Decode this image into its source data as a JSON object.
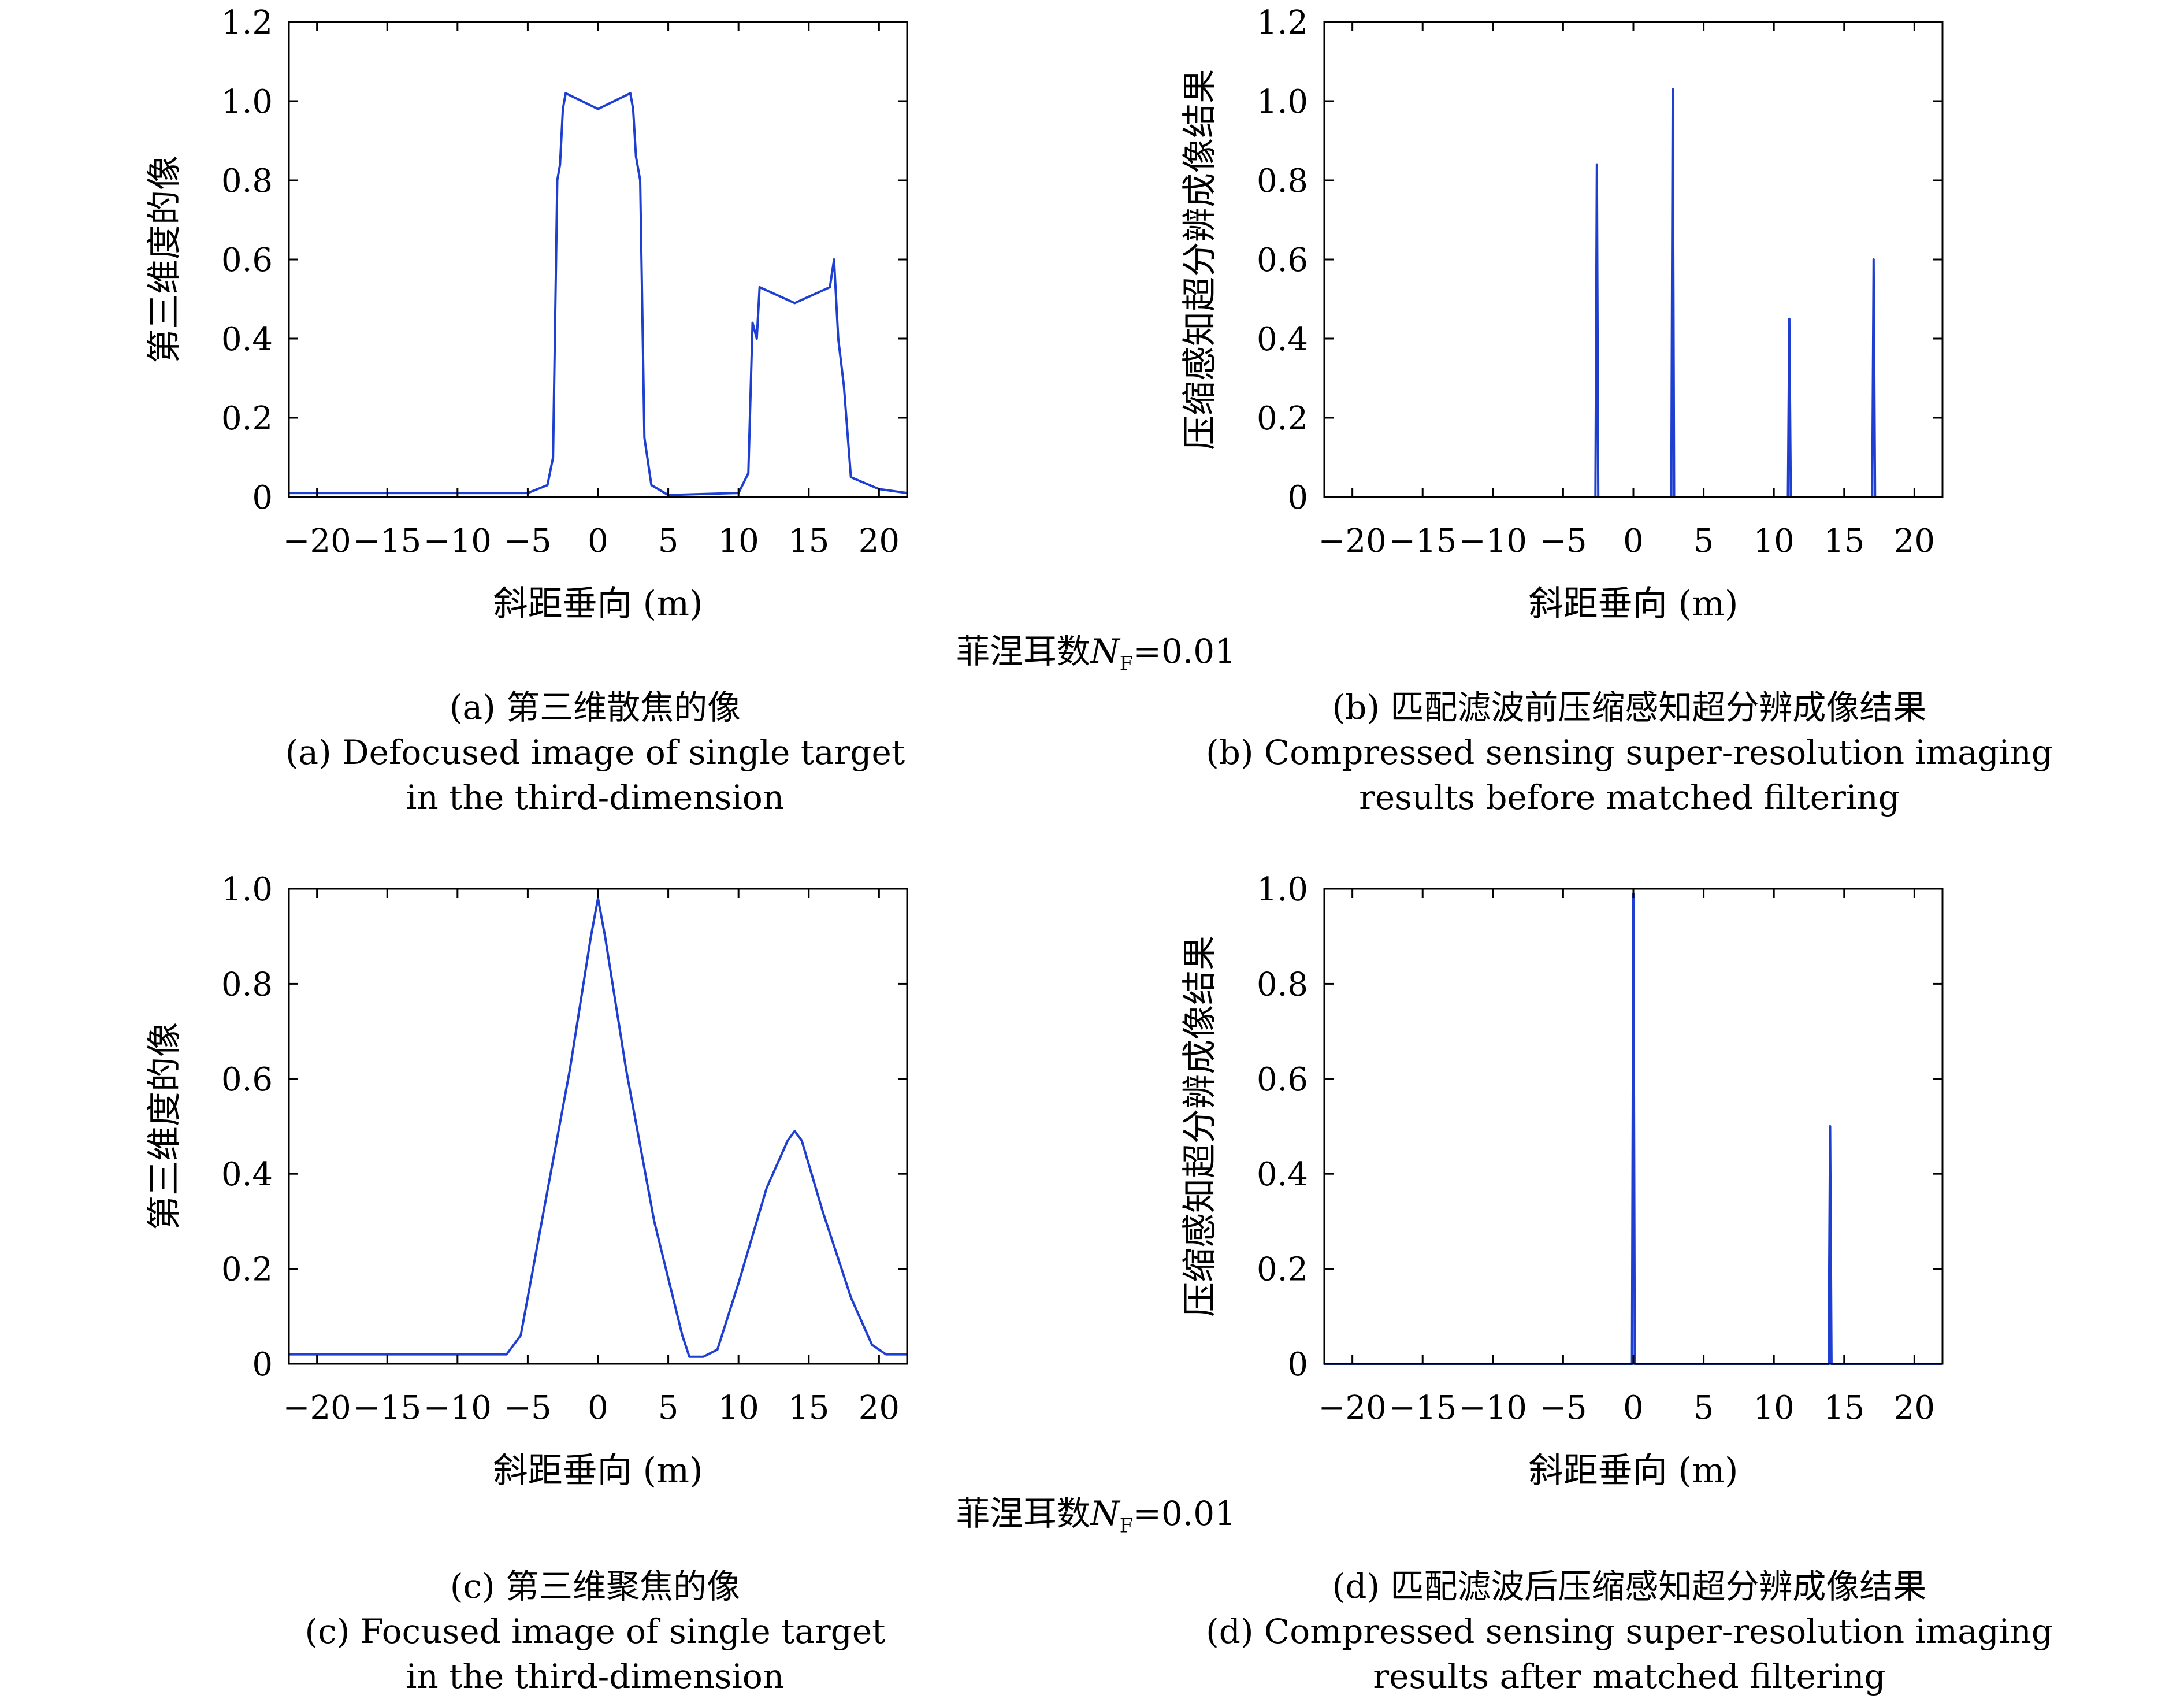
{
  "chart_data": [
    {
      "id": "a",
      "type": "line",
      "xlabel": "斜距垂向 (m)",
      "ylabel": "第三维度的像",
      "xlim": [
        -22,
        22
      ],
      "ylim": [
        0,
        1.2
      ],
      "xticks": [
        -20,
        -15,
        -10,
        -5,
        0,
        5,
        10,
        15,
        20
      ],
      "yticks": [
        0,
        0.2,
        0.4,
        0.6,
        0.8,
        1.0,
        1.2
      ],
      "ytick_labels": [
        "0",
        "0.2",
        "0.4",
        "0.6",
        "0.8",
        "1.0",
        "1.2"
      ],
      "series": [
        {
          "color": "#1f3fd0",
          "x": [
            -22,
            -5,
            -3.6,
            -3.2,
            -2.9,
            -2.7,
            -2.5,
            -2.3,
            0,
            2.3,
            2.5,
            2.7,
            3.0,
            3.3,
            3.8,
            5,
            10,
            10.7,
            11.0,
            11.3,
            11.5,
            14,
            16.5,
            16.8,
            17.1,
            17.5,
            18,
            20,
            22
          ],
          "y": [
            0.01,
            0.01,
            0.03,
            0.1,
            0.8,
            0.84,
            0.98,
            1.02,
            0.98,
            1.02,
            0.98,
            0.86,
            0.8,
            0.15,
            0.03,
            0.005,
            0.01,
            0.06,
            0.44,
            0.4,
            0.53,
            0.49,
            0.53,
            0.6,
            0.4,
            0.28,
            0.05,
            0.02,
            0.01
          ]
        }
      ]
    },
    {
      "id": "b",
      "type": "line",
      "xlabel": "斜距垂向 (m)",
      "ylabel": "压缩感知超分辨成像结果",
      "xlim": [
        -22,
        22
      ],
      "ylim": [
        0,
        1.2
      ],
      "xticks": [
        -20,
        -15,
        -10,
        -5,
        0,
        5,
        10,
        15,
        20
      ],
      "yticks": [
        0,
        0.2,
        0.4,
        0.6,
        0.8,
        1.0,
        1.2
      ],
      "ytick_labels": [
        "0",
        "0.2",
        "0.4",
        "0.6",
        "0.8",
        "1.0",
        "1.2"
      ],
      "series": [
        {
          "color": "#1f3fd0",
          "x": [
            -22,
            -2.7,
            -2.6,
            -2.5,
            2.7,
            2.8,
            2.9,
            11.0,
            11.1,
            11.2,
            17.0,
            17.1,
            17.2,
            22
          ],
          "y": [
            0,
            0,
            0.84,
            0,
            0,
            1.03,
            0,
            0,
            0.45,
            0,
            0,
            0.6,
            0,
            0
          ]
        }
      ]
    },
    {
      "id": "c",
      "type": "line",
      "xlabel": "斜距垂向 (m)",
      "ylabel": "第三维度的像",
      "xlim": [
        -22,
        22
      ],
      "ylim": [
        0,
        1.0
      ],
      "xticks": [
        -20,
        -15,
        -10,
        -5,
        0,
        5,
        10,
        15,
        20
      ],
      "yticks": [
        0,
        0.2,
        0.4,
        0.6,
        0.8,
        1.0
      ],
      "ytick_labels": [
        "0",
        "0.2",
        "0.4",
        "0.6",
        "0.8",
        "1.0"
      ],
      "series": [
        {
          "color": "#1f3fd0",
          "x": [
            -22,
            -6.5,
            -5.5,
            -4,
            -2,
            -0.5,
            0,
            0.5,
            2,
            4,
            6,
            6.5,
            7.5,
            8.5,
            10,
            12,
            13.5,
            14,
            14.5,
            16,
            18,
            19.5,
            20.5,
            22
          ],
          "y": [
            0.02,
            0.02,
            0.06,
            0.3,
            0.62,
            0.9,
            0.98,
            0.9,
            0.62,
            0.3,
            0.06,
            0.015,
            0.015,
            0.03,
            0.17,
            0.37,
            0.47,
            0.49,
            0.47,
            0.32,
            0.14,
            0.04,
            0.02,
            0.02
          ]
        }
      ]
    },
    {
      "id": "d",
      "type": "line",
      "xlabel": "斜距垂向 (m)",
      "ylabel": "压缩感知超分辨成像结果",
      "xlim": [
        -22,
        22
      ],
      "ylim": [
        0,
        1.0
      ],
      "xticks": [
        -20,
        -15,
        -10,
        -5,
        0,
        5,
        10,
        15,
        20
      ],
      "yticks": [
        0,
        0.2,
        0.4,
        0.6,
        0.8,
        1.0
      ],
      "ytick_labels": [
        "0",
        "0.2",
        "0.4",
        "0.6",
        "0.8",
        "1.0"
      ],
      "series": [
        {
          "color": "#1f3fd0",
          "x": [
            -22,
            -0.1,
            0,
            0.1,
            13.9,
            14.0,
            14.1,
            22
          ],
          "y": [
            0,
            0,
            0.99,
            0,
            0,
            0.5,
            0,
            0
          ]
        }
      ]
    }
  ],
  "fresnel": {
    "prefix": "菲涅耳数",
    "symbol": "N",
    "subscript": "F",
    "suffix": "=0.01"
  },
  "captions": {
    "a": {
      "line1": "(a) 第三维散焦的像",
      "line2": "(a) Defocused image of single target",
      "line3": "in the third-dimension"
    },
    "b": {
      "line1": "(b) 匹配滤波前压缩感知超分辨成像结果",
      "line2": "(b) Compressed sensing super-resolution imaging",
      "line3": "results before matched filtering"
    },
    "c": {
      "line1": "(c) 第三维聚焦的像",
      "line2": "(c) Focused image of single target",
      "line3": "in the third-dimension"
    },
    "d": {
      "line1": "(d) 匹配滤波后压缩感知超分辨成像结果",
      "line2": "(d) Compressed sensing super-resolution imaging",
      "line3": "results after matched filtering"
    }
  }
}
